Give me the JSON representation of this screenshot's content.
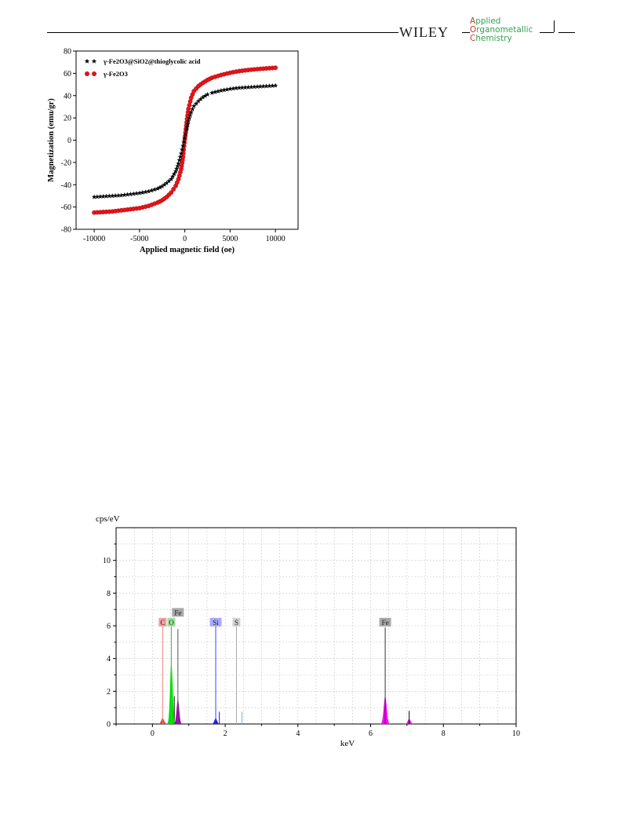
{
  "header": {
    "publisher": "WILEY",
    "journal_lines": [
      {
        "initial": "A",
        "rest": "pplied"
      },
      {
        "initial": "O",
        "rest": "rganometallic"
      },
      {
        "initial": "C",
        "rest": "hemistry"
      }
    ]
  },
  "chart_data": [
    {
      "type": "scatter",
      "xlabel": "Applied magnetic field (oe)",
      "ylabel": "Magnetization (emu/gr)",
      "xlim": [
        -12000,
        12500
      ],
      "ylim": [
        -80,
        80
      ],
      "x_ticks": [
        -10000,
        -5000,
        0,
        5000,
        10000
      ],
      "x_tick_labels": [
        "-10000",
        "-5000",
        "0",
        "5000",
        "10000"
      ],
      "y_ticks": [
        -80,
        -60,
        -40,
        -20,
        0,
        20,
        40,
        60,
        80
      ],
      "y_tick_labels": [
        "-80",
        "-60",
        "-40",
        "-20",
        "0",
        "20",
        "40",
        "60",
        "80"
      ],
      "legend_position": "top-left",
      "series": [
        {
          "name": "γ-Fe2O3@SiO2@thioglycolic acid",
          "marker": "star",
          "color": "#000000",
          "x": [
            -10000,
            -9000,
            -8000,
            -7000,
            -6000,
            -5000,
            -4000,
            -3000,
            -2500,
            -2000,
            -1500,
            -1000,
            -700,
            -400,
            -200,
            0,
            200,
            400,
            700,
            1000,
            1500,
            2000,
            2500,
            3000,
            4000,
            5000,
            6000,
            7000,
            8000,
            9000,
            10000
          ],
          "y": [
            -51,
            -50.5,
            -50,
            -49.5,
            -48.5,
            -47.5,
            -46,
            -43.5,
            -41.5,
            -38.5,
            -35,
            -28,
            -21,
            -12,
            -5,
            2,
            9,
            17,
            25,
            30.5,
            35,
            38.5,
            41,
            42.5,
            44.5,
            46,
            47,
            47.5,
            48,
            48.5,
            49
          ]
        },
        {
          "name": "γ-Fe2O3",
          "marker": "circle",
          "color": "#e8141a",
          "x": [
            -10000,
            -9000,
            -8000,
            -7000,
            -6000,
            -5000,
            -4000,
            -3000,
            -2500,
            -2000,
            -1500,
            -1000,
            -700,
            -400,
            -200,
            0,
            200,
            400,
            700,
            1000,
            1500,
            2000,
            2500,
            3000,
            4000,
            5000,
            6000,
            7000,
            8000,
            9000,
            10000
          ],
          "y": [
            -65,
            -64.5,
            -64,
            -63,
            -62,
            -61,
            -59,
            -56,
            -54,
            -51,
            -47,
            -41,
            -35,
            -26,
            -15,
            1,
            16,
            28,
            38,
            44,
            48.5,
            51.5,
            54,
            56,
            58.5,
            60.5,
            62,
            63,
            63.8,
            64.4,
            65
          ]
        }
      ]
    },
    {
      "type": "line",
      "ylabel": "cps/eV",
      "xlabel": "keV",
      "xlim": [
        -1,
        10
      ],
      "ylim": [
        0,
        12
      ],
      "x_ticks": [
        0,
        2,
        4,
        6,
        8,
        10
      ],
      "x_tick_labels": [
        "0",
        "2",
        "4",
        "6",
        "8",
        "10"
      ],
      "y_ticks": [
        0,
        2,
        4,
        6,
        8,
        10
      ],
      "y_tick_labels": [
        "0",
        "2",
        "4",
        "6",
        "8",
        "10"
      ],
      "grid": true,
      "peaks": [
        {
          "element": "C",
          "energy": 0.28,
          "label_height": 6.2,
          "line_height": 6.2,
          "fill_height": 0.35,
          "width": 0.08,
          "color": "#f08080",
          "fill": "#e83a3a",
          "label_bg": "#f3a0a0"
        },
        {
          "element": "O",
          "energy": 0.52,
          "label_height": 6.2,
          "line_height": 6.2,
          "fill_height": 3.8,
          "width": 0.07,
          "color": "#32cd32",
          "fill": "#00dd00",
          "label_bg": "#9be39b"
        },
        {
          "element": "Fe",
          "energy": 0.7,
          "label_height": 6.8,
          "line_height": 5.8,
          "fill_height": 1.5,
          "width": 0.07,
          "color": "#555555",
          "fill": "#a000b0",
          "label_bg": "#a8a8a8"
        },
        {
          "element": "Si",
          "energy": 1.74,
          "label_height": 6.2,
          "line_height": 6.2,
          "fill_height": 0.35,
          "width": 0.07,
          "color": "#4040ff",
          "fill": "#1010d0",
          "label_bg": "#a9a9ff"
        },
        {
          "element": "S",
          "energy": 2.31,
          "label_height": 6.2,
          "line_height": 6.2,
          "fill_height": 0.0,
          "width": 0.06,
          "color": "#aaaaaa",
          "fill": "#aaaaaa",
          "label_bg": "#d0d0d0"
        },
        {
          "element": "Fe",
          "energy": 6.4,
          "label_height": 6.2,
          "line_height": 5.9,
          "fill_height": 1.7,
          "width": 0.08,
          "color": "#333333",
          "fill": "#ff00ff",
          "label_bg": "#a8a8a8"
        }
      ],
      "minor_peaks": [
        {
          "energy": 0.6,
          "height": 1.7,
          "color": "#000000"
        },
        {
          "energy": 1.84,
          "height": 0.75,
          "color": "#1010d0"
        },
        {
          "energy": 2.46,
          "height": 0.75,
          "color": "#7ab3d9"
        },
        {
          "energy": 7.06,
          "height": 0.8,
          "color": "#000000",
          "fill_height": 0.3,
          "fill": "#ff00ff"
        }
      ]
    }
  ]
}
